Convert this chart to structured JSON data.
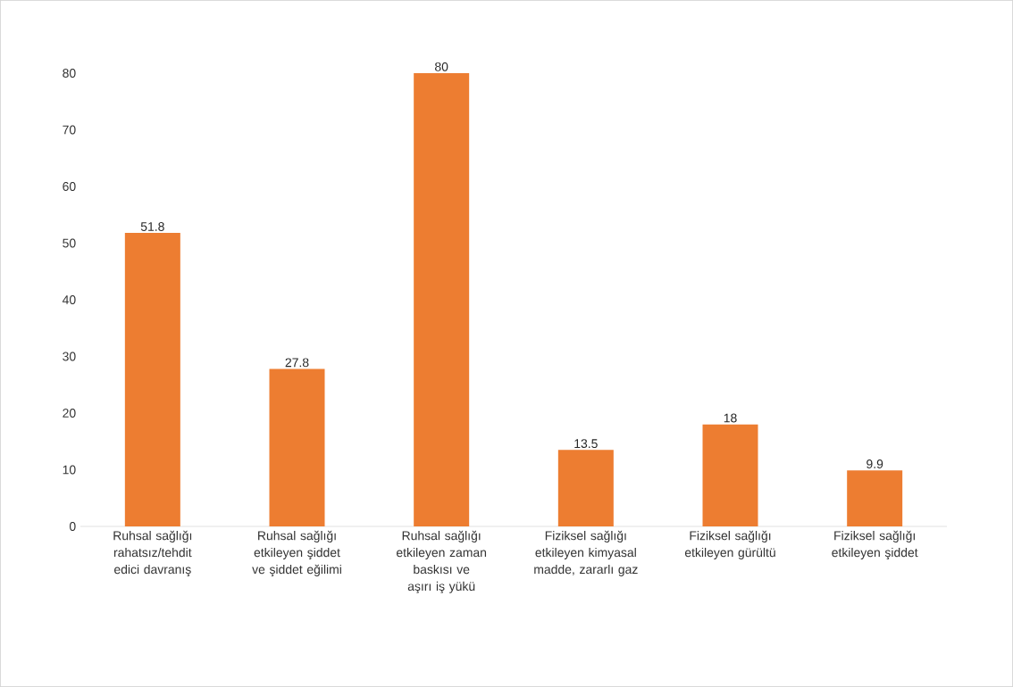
{
  "chart_data": {
    "type": "bar",
    "categories": [
      "Ruhsal sağlığı rahatsız/tehdit edici davranış",
      "Ruhsal sağlığı etkileyen şiddet ve şiddet eğilimi",
      "Ruhsal sağlığı etkileyen zaman baskısı ve aşırı iş yükü",
      "Fiziksel sağlığı etkileyen kimyasal madde, zararlı gaz",
      "Fiziksel sağlığı etkileyen gürültü",
      "Fiziksel sağlığı etkileyen şiddet"
    ],
    "values": [
      51.8,
      27.8,
      80,
      13.5,
      18,
      9.9
    ],
    "color": "#ed7d31",
    "ylim": [
      0,
      80
    ],
    "yticks": [
      0,
      10,
      20,
      30,
      40,
      50,
      60,
      70,
      80
    ],
    "grid": false,
    "data_labels": true
  }
}
